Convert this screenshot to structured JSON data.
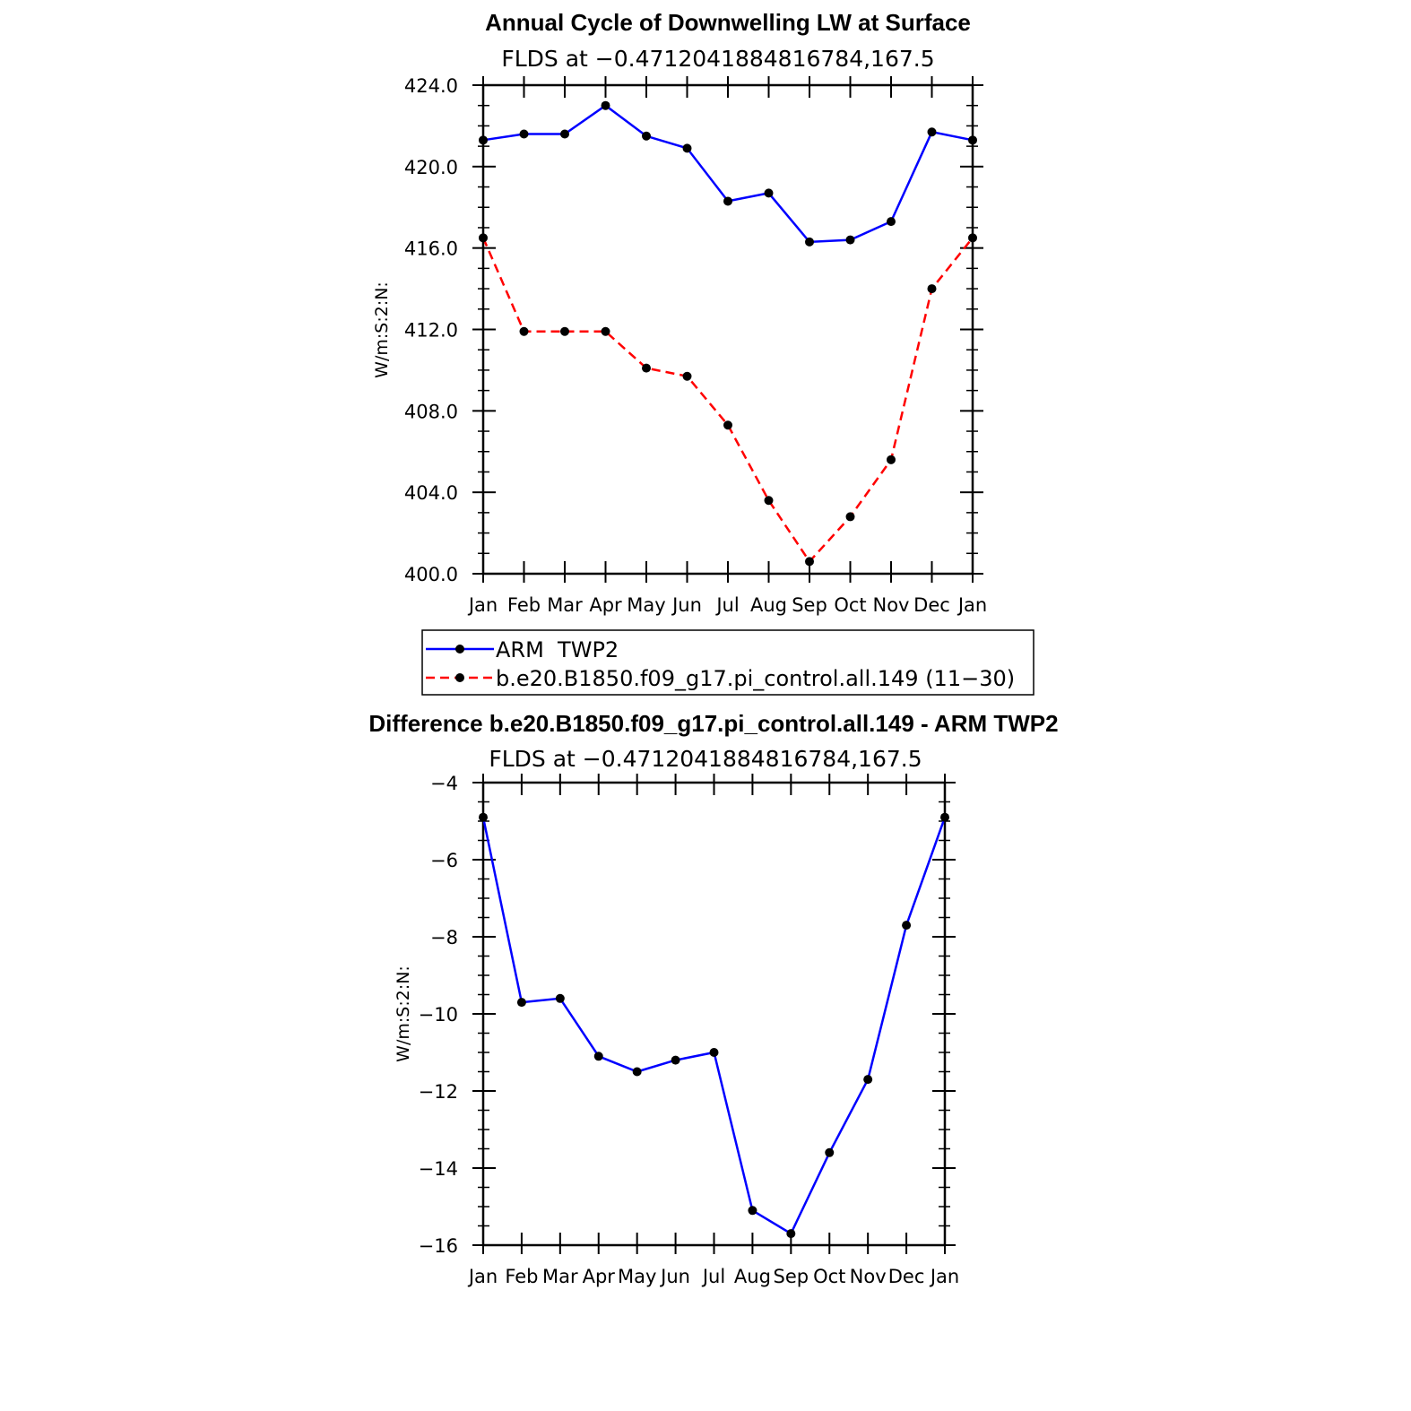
{
  "chart_data": [
    {
      "type": "line",
      "title": "Annual Cycle of Downwelling LW at Surface",
      "subtitle": "FLDS at −0.4712041884816784,167.5",
      "ylabel": "W/m:S:2:N:",
      "xlabel": "",
      "categories": [
        "Jan",
        "Feb",
        "Mar",
        "Apr",
        "May",
        "Jun",
        "Jul",
        "Aug",
        "Sep",
        "Oct",
        "Nov",
        "Dec",
        "Jan"
      ],
      "ylim": [
        400,
        424
      ],
      "yticks": [
        "400.0",
        "404.0",
        "408.0",
        "412.0",
        "416.0",
        "420.0",
        "424.0"
      ],
      "series": [
        {
          "name": "ARM  TWP2",
          "color": "#0000ff",
          "dash": "solid",
          "values": [
            421.3,
            421.6,
            421.6,
            423.0,
            421.5,
            420.9,
            418.3,
            418.7,
            416.3,
            416.4,
            417.3,
            421.7,
            421.3
          ]
        },
        {
          "name": "b.e20.B1850.f09_g17.pi_control.all.149 (11−30)",
          "color": "#ff0000",
          "dash": "dashed",
          "values": [
            416.5,
            411.9,
            411.9,
            411.9,
            410.1,
            409.7,
            407.3,
            403.6,
            400.6,
            402.8,
            405.6,
            414.0,
            416.5
          ]
        }
      ],
      "legend": "below"
    },
    {
      "type": "line",
      "title": "Difference b.e20.B1850.f09_g17.pi_control.all.149 - ARM TWP2",
      "subtitle": "FLDS at −0.4712041884816784,167.5",
      "ylabel": "W/m:S:2:N:",
      "xlabel": "",
      "categories": [
        "Jan",
        "Feb",
        "Mar",
        "Apr",
        "May",
        "Jun",
        "Jul",
        "Aug",
        "Sep",
        "Oct",
        "Nov",
        "Dec",
        "Jan"
      ],
      "ylim": [
        -16,
        -4
      ],
      "yticks": [
        "−16",
        "−14",
        "−12",
        "−10",
        "−8",
        "−6",
        "−4"
      ],
      "series": [
        {
          "color": "#0000ff",
          "dash": "solid",
          "values": [
            -4.9,
            -9.7,
            -9.6,
            -11.1,
            -11.5,
            -11.2,
            -11.0,
            -15.1,
            -15.7,
            -13.6,
            -11.7,
            -7.7,
            -4.9
          ]
        }
      ]
    }
  ]
}
